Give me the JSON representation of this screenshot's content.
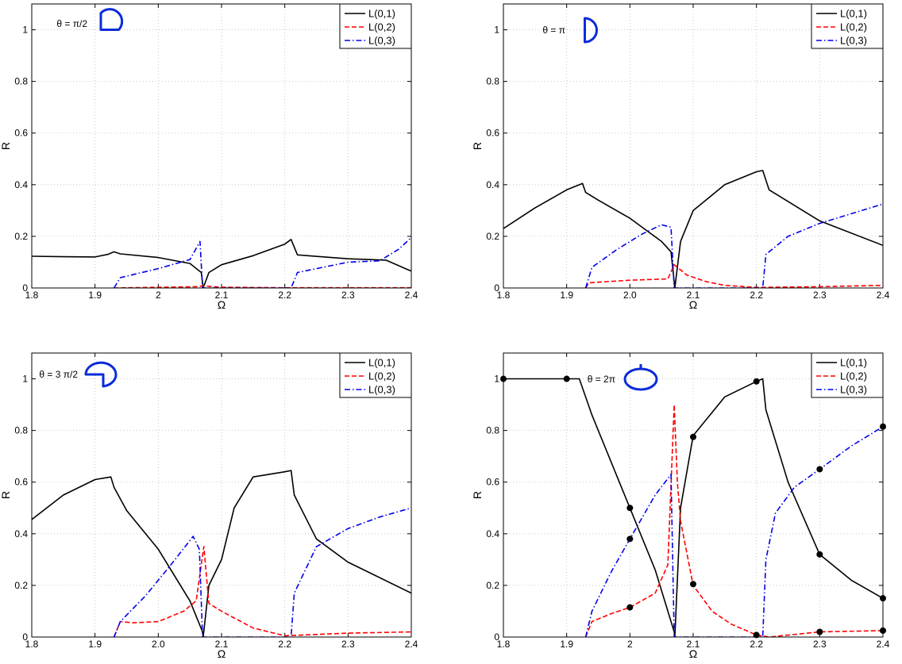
{
  "colors": {
    "l01": "#000000",
    "l02": "#ff0000",
    "l03": "#0000ee",
    "grid": "#bdbdbd",
    "icon": "#0b2bd9"
  },
  "chart_data": [
    {
      "type": "line",
      "annotation": "θ = π/2",
      "icon": "quarter-circle-icon",
      "xlabel": "Ω",
      "ylabel": "R",
      "xlim": [
        1.8,
        2.4
      ],
      "ylim": [
        0,
        1.1
      ],
      "xticks": [
        "1.8",
        "1.9",
        "2",
        "2.1",
        "2.2",
        "2.3",
        "2.4"
      ],
      "yticks": [
        "0",
        "0.2",
        "0.4",
        "0.6",
        "0.8",
        "1"
      ],
      "grid": true,
      "legend": "top-right",
      "series": [
        {
          "name": "L(0,1)",
          "style": "solid",
          "x": [
            1.8,
            1.85,
            1.9,
            1.92,
            1.93,
            1.94,
            2.0,
            2.05,
            2.068,
            2.071,
            2.08,
            2.1,
            2.15,
            2.2,
            2.21,
            2.22,
            2.3,
            2.36,
            2.4
          ],
          "y": [
            0.123,
            0.121,
            0.12,
            0.13,
            0.14,
            0.132,
            0.118,
            0.095,
            0.06,
            0.0,
            0.06,
            0.09,
            0.125,
            0.17,
            0.188,
            0.128,
            0.113,
            0.108,
            0.065
          ]
        },
        {
          "name": "L(0,2)",
          "style": "dashed",
          "x": [
            1.93,
            2.06,
            2.07,
            2.1,
            2.2,
            2.4
          ],
          "y": [
            0.0,
            0.005,
            0.008,
            0.003,
            0.001,
            0.001
          ]
        },
        {
          "name": "L(0,3)",
          "style": "dashdot",
          "x": [
            1.93,
            1.94,
            2.0,
            2.05,
            2.066,
            2.07,
            2.1,
            2.2,
            2.21,
            2.22,
            2.3,
            2.35,
            2.38,
            2.4
          ],
          "y": [
            0.0,
            0.04,
            0.075,
            0.11,
            0.18,
            0.0,
            0.0,
            0.0,
            0.0,
            0.06,
            0.1,
            0.105,
            0.15,
            0.195
          ]
        }
      ]
    },
    {
      "type": "line",
      "annotation": "θ = π",
      "icon": "half-circle-icon",
      "xlabel": "Ω",
      "ylabel": "R",
      "xlim": [
        1.8,
        2.4
      ],
      "ylim": [
        0,
        1.1
      ],
      "xticks": [
        "1.8",
        "1.9",
        "2.0",
        "2.1",
        "2.2",
        "2.3",
        "2.4"
      ],
      "yticks": [
        "0",
        "0.2",
        "0.4",
        "0.6",
        "0.8",
        "1"
      ],
      "grid": true,
      "legend": "top-right",
      "series": [
        {
          "name": "L(0,1)",
          "style": "solid",
          "x": [
            1.8,
            1.85,
            1.9,
            1.925,
            1.93,
            1.95,
            2.0,
            2.05,
            2.065,
            2.071,
            2.08,
            2.1,
            2.15,
            2.2,
            2.21,
            2.22,
            2.3,
            2.4
          ],
          "y": [
            0.23,
            0.31,
            0.38,
            0.405,
            0.37,
            0.34,
            0.27,
            0.18,
            0.14,
            0.0,
            0.18,
            0.3,
            0.4,
            0.45,
            0.455,
            0.38,
            0.26,
            0.165
          ]
        },
        {
          "name": "L(0,2)",
          "style": "dashed",
          "x": [
            1.93,
            1.935,
            2.0,
            2.06,
            2.07,
            2.09,
            2.12,
            2.15,
            2.2,
            2.3,
            2.4
          ],
          "y": [
            0.0,
            0.02,
            0.03,
            0.035,
            0.09,
            0.05,
            0.025,
            0.01,
            0.002,
            0.005,
            0.01
          ]
        },
        {
          "name": "L(0,3)",
          "style": "dashdot",
          "x": [
            1.93,
            1.94,
            1.98,
            2.02,
            2.05,
            2.065,
            2.07,
            2.1,
            2.2,
            2.21,
            2.215,
            2.25,
            2.3,
            2.4
          ],
          "y": [
            0.0,
            0.08,
            0.15,
            0.21,
            0.245,
            0.235,
            0.0,
            0.0,
            0.0,
            0.0,
            0.13,
            0.2,
            0.25,
            0.325
          ]
        }
      ]
    },
    {
      "type": "line",
      "annotation": "θ = 3 π/2",
      "icon": "three-quarter-circle-icon",
      "xlabel": "Ω",
      "ylabel": "R",
      "xlim": [
        1.8,
        2.4
      ],
      "ylim": [
        0,
        1.1
      ],
      "xticks": [
        "1.8",
        "1.9",
        "2.0",
        "2.1",
        "2.2",
        "2.3",
        "2.4"
      ],
      "yticks": [
        "0",
        "0.2",
        "0.4",
        "0.6",
        "0.8",
        "1"
      ],
      "grid": true,
      "legend": "top-right",
      "series": [
        {
          "name": "L(0,1)",
          "style": "solid",
          "x": [
            1.8,
            1.85,
            1.9,
            1.925,
            1.93,
            1.95,
            2.0,
            2.05,
            2.07,
            2.071,
            2.08,
            2.1,
            2.12,
            2.15,
            2.2,
            2.21,
            2.215,
            2.25,
            2.3,
            2.4
          ],
          "y": [
            0.455,
            0.55,
            0.61,
            0.62,
            0.58,
            0.49,
            0.34,
            0.14,
            0.02,
            0.0,
            0.2,
            0.3,
            0.5,
            0.62,
            0.64,
            0.645,
            0.55,
            0.38,
            0.29,
            0.17
          ]
        },
        {
          "name": "L(0,2)",
          "style": "dashed",
          "x": [
            1.93,
            1.94,
            1.96,
            2.0,
            2.04,
            2.06,
            2.072,
            2.08,
            2.1,
            2.15,
            2.2,
            2.3,
            2.4
          ],
          "y": [
            0.0,
            0.06,
            0.055,
            0.06,
            0.1,
            0.14,
            0.35,
            0.13,
            0.1,
            0.035,
            0.005,
            0.015,
            0.02
          ]
        },
        {
          "name": "L(0,3)",
          "style": "dashdot",
          "x": [
            1.93,
            1.94,
            1.98,
            2.02,
            2.055,
            2.065,
            2.07,
            2.1,
            2.21,
            2.215,
            2.25,
            2.3,
            2.35,
            2.4
          ],
          "y": [
            0.0,
            0.06,
            0.16,
            0.28,
            0.39,
            0.34,
            0.0,
            0.0,
            0.0,
            0.17,
            0.35,
            0.42,
            0.465,
            0.5
          ]
        }
      ]
    },
    {
      "type": "line",
      "annotation": "θ = 2π",
      "icon": "full-circle-icon",
      "xlabel": "Ω",
      "ylabel": "R",
      "xlim": [
        1.8,
        2.4
      ],
      "ylim": [
        0,
        1.1
      ],
      "xticks": [
        "1.8",
        "1.9",
        "2",
        "2.1",
        "2.2",
        "2.3",
        "2.4"
      ],
      "yticks": [
        "0",
        "0.2",
        "0.4",
        "0.6",
        "0.8",
        "1"
      ],
      "grid": true,
      "legend": "top-right",
      "series": [
        {
          "name": "L(0,1)",
          "style": "solid",
          "x": [
            1.8,
            1.9,
            1.92,
            1.94,
            1.97,
            2.0,
            2.04,
            2.07,
            2.071,
            2.08,
            2.1,
            2.15,
            2.2,
            2.21,
            2.215,
            2.25,
            2.3,
            2.35,
            2.4
          ],
          "y": [
            1.0,
            1.0,
            1.0,
            0.86,
            0.68,
            0.5,
            0.26,
            0.02,
            0.0,
            0.5,
            0.78,
            0.93,
            0.99,
            1.0,
            0.88,
            0.6,
            0.32,
            0.22,
            0.15
          ]
        },
        {
          "name": "L(0,2)",
          "style": "dashed",
          "x": [
            1.93,
            1.94,
            1.97,
            2.0,
            2.04,
            2.06,
            2.07,
            2.075,
            2.08,
            2.1,
            2.13,
            2.16,
            2.2,
            2.22,
            2.3,
            2.4
          ],
          "y": [
            0.0,
            0.06,
            0.09,
            0.115,
            0.17,
            0.28,
            0.9,
            0.6,
            0.45,
            0.2,
            0.1,
            0.05,
            0.008,
            0.0,
            0.02,
            0.025
          ]
        },
        {
          "name": "L(0,3)",
          "style": "dashdot",
          "x": [
            1.93,
            1.94,
            1.97,
            2.0,
            2.04,
            2.065,
            2.07,
            2.1,
            2.21,
            2.215,
            2.23,
            2.26,
            2.3,
            2.35,
            2.4
          ],
          "y": [
            0.0,
            0.1,
            0.25,
            0.38,
            0.55,
            0.63,
            0.0,
            0.0,
            0.0,
            0.3,
            0.48,
            0.58,
            0.65,
            0.74,
            0.815
          ]
        }
      ],
      "markers": [
        {
          "x": 1.8,
          "y": 1.0
        },
        {
          "x": 1.9,
          "y": 1.0
        },
        {
          "x": 2.0,
          "y": 0.5
        },
        {
          "x": 2.0,
          "y": 0.38
        },
        {
          "x": 2.0,
          "y": 0.115
        },
        {
          "x": 2.1,
          "y": 0.775
        },
        {
          "x": 2.1,
          "y": 0.205
        },
        {
          "x": 2.2,
          "y": 0.99
        },
        {
          "x": 2.2,
          "y": 0.008
        },
        {
          "x": 2.3,
          "y": 0.65
        },
        {
          "x": 2.3,
          "y": 0.32
        },
        {
          "x": 2.3,
          "y": 0.02
        },
        {
          "x": 2.4,
          "y": 0.815
        },
        {
          "x": 2.4,
          "y": 0.15
        },
        {
          "x": 2.4,
          "y": 0.025
        }
      ]
    }
  ]
}
